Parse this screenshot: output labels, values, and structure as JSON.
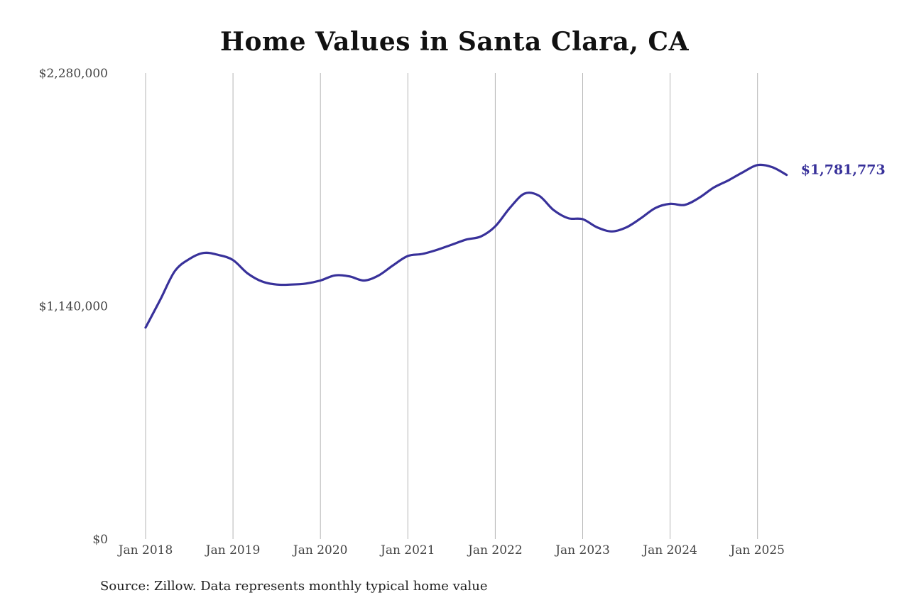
{
  "chart_data": {
    "type": "line",
    "title": "Home Values in Santa Clara, CA",
    "xlabel": "",
    "ylabel": "",
    "ylim": [
      0,
      2280000
    ],
    "y_ticks": [
      "$2,280,000",
      "$1,140,000",
      "$0"
    ],
    "y_tick_values": [
      2280000,
      1140000,
      0
    ],
    "x_ticks": [
      "Jan 2018",
      "Jan 2019",
      "Jan 2020",
      "Jan 2021",
      "Jan 2022",
      "Jan 2023",
      "Jan 2024",
      "Jan 2025"
    ],
    "x_tick_dates": [
      "2018-01",
      "2019-01",
      "2020-01",
      "2021-01",
      "2022-01",
      "2023-01",
      "2024-01",
      "2025-01"
    ],
    "grid": "vertical",
    "line_color": "#38319a",
    "end_label": "$1,781,773",
    "series": [
      {
        "x": [
          "2018-01",
          "2018-03",
          "2018-05",
          "2018-07",
          "2018-09",
          "2018-11",
          "2019-01",
          "2019-03",
          "2019-05",
          "2019-07",
          "2019-09",
          "2019-11",
          "2020-01",
          "2020-03",
          "2020-05",
          "2020-07",
          "2020-09",
          "2020-11",
          "2021-01",
          "2021-03",
          "2021-05",
          "2021-07",
          "2021-09",
          "2021-11",
          "2022-01",
          "2022-03",
          "2022-05",
          "2022-07",
          "2022-09",
          "2022-11",
          "2023-01",
          "2023-03",
          "2023-05",
          "2023-07",
          "2023-09",
          "2023-11",
          "2024-01",
          "2024-03",
          "2024-05",
          "2024-07",
          "2024-09",
          "2024-11",
          "2025-01",
          "2025-03",
          "2025-05"
        ],
        "values": [
          1035000,
          1170000,
          1310000,
          1370000,
          1400000,
          1390000,
          1365000,
          1300000,
          1260000,
          1245000,
          1245000,
          1250000,
          1265000,
          1290000,
          1285000,
          1265000,
          1290000,
          1340000,
          1385000,
          1395000,
          1415000,
          1440000,
          1465000,
          1480000,
          1530000,
          1620000,
          1690000,
          1680000,
          1610000,
          1570000,
          1565000,
          1525000,
          1505000,
          1525000,
          1570000,
          1620000,
          1640000,
          1635000,
          1670000,
          1720000,
          1755000,
          1795000,
          1830000,
          1820000,
          1781773
        ]
      }
    ]
  },
  "source_note": "Source: Zillow. Data represents monthly typical home value"
}
